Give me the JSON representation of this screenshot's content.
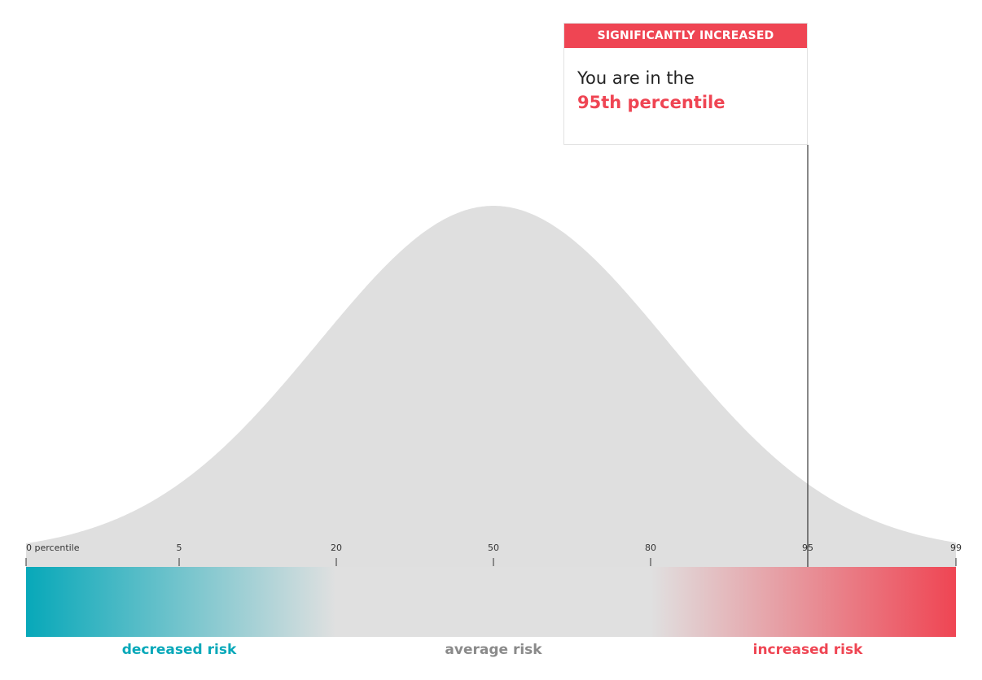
{
  "chart_data": {
    "type": "area",
    "description_series": "population risk distribution (bell curve) over percentiles",
    "x_axis": {
      "unit": "percentile",
      "ticks": [
        {
          "value": 0,
          "label": "0 percentile"
        },
        {
          "value": 5,
          "label": "5"
        },
        {
          "value": 20,
          "label": "20"
        },
        {
          "value": 50,
          "label": "50"
        },
        {
          "value": 80,
          "label": "80"
        },
        {
          "value": 95,
          "label": "95"
        },
        {
          "value": 99,
          "label": "99"
        }
      ],
      "range": [
        0,
        99
      ]
    },
    "marker": {
      "percentile": 95,
      "category": "SIGNIFICANTLY INCREASED",
      "text_prefix": "You are in the",
      "text_value": "95th percentile"
    },
    "bands": [
      {
        "name": "decreased risk",
        "from_percentile": 0,
        "to_percentile": 20
      },
      {
        "name": "average risk",
        "from_percentile": 20,
        "to_percentile": 80
      },
      {
        "name": "increased risk",
        "from_percentile": 80,
        "to_percentile": 99
      }
    ]
  },
  "colors": {
    "curve_fill": "#dfdfdf",
    "decreased": "#07a8b9",
    "average": "#e0e0e0",
    "increased": "#ef4553",
    "average_label": "#8a8a8a",
    "marker_line": "#111111"
  },
  "labels": {
    "decreased": "decreased risk",
    "average": "average risk",
    "increased": "increased risk"
  }
}
